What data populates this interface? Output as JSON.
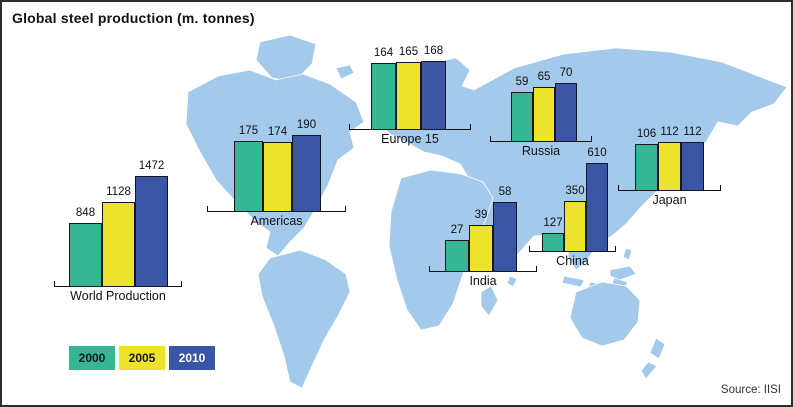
{
  "title": "Global steel production (m. tonnes)",
  "source": "Source: IISI",
  "legend": [
    {
      "label": "2000",
      "color": "#35b794",
      "text_color": "#15151f"
    },
    {
      "label": "2005",
      "color": "#ede32b",
      "text_color": "#15151f"
    },
    {
      "label": "2010",
      "color": "#3b55a5",
      "text_color": "#ffffff"
    }
  ],
  "chart_data": {
    "type": "bar",
    "title": "Global steel production (m. tonnes)",
    "unit": "million tonnes",
    "series_years": [
      "2000",
      "2005",
      "2010"
    ],
    "series_colors": [
      "#35b794",
      "#ede32b",
      "#3b55a5"
    ],
    "overlay": "world-map",
    "legend_position": "bottom-left",
    "source": "Source: IISI",
    "regions": [
      {
        "name": "World Production",
        "values": [
          848,
          1128,
          1472
        ]
      },
      {
        "name": "Americas",
        "values": [
          175,
          174,
          190
        ]
      },
      {
        "name": "Europe 15",
        "values": [
          164,
          165,
          168
        ]
      },
      {
        "name": "Russia",
        "values": [
          59,
          65,
          70
        ]
      },
      {
        "name": "Japan",
        "values": [
          106,
          112,
          112
        ]
      },
      {
        "name": "India",
        "values": [
          27,
          39,
          58
        ]
      },
      {
        "name": "China",
        "values": [
          127,
          350,
          610
        ]
      }
    ]
  }
}
